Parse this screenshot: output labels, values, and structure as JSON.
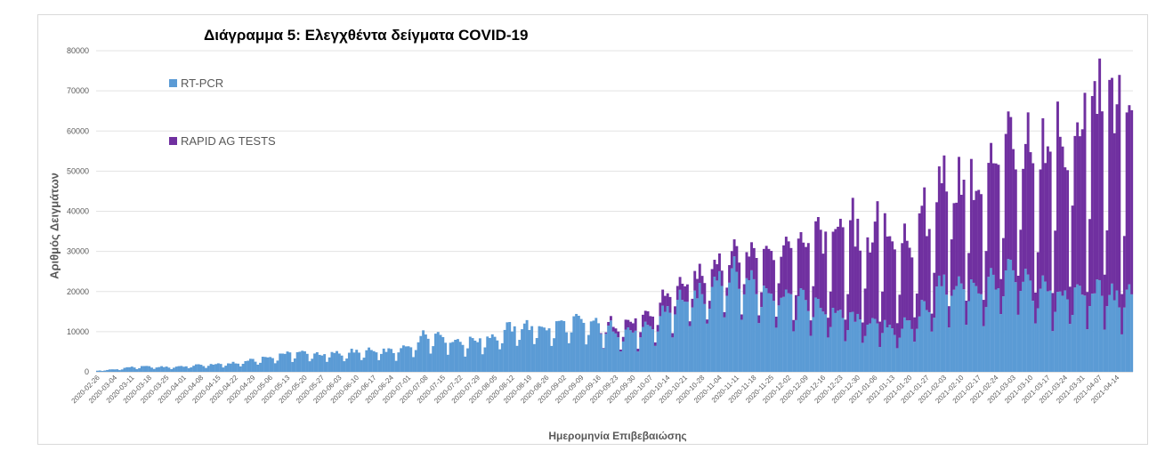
{
  "chart_data": {
    "type": "bar",
    "stacked": true,
    "title": "Διάγραμμα 5: Ελεγχθέντα δείγματα COVID-19",
    "xlabel": "Ημερομηνία Επιβεβαιώσης",
    "ylabel": "Αριθμός Δειγμάτων",
    "ylim": [
      0,
      80000
    ],
    "y_ticks": [
      0,
      10000,
      20000,
      30000,
      40000,
      50000,
      60000,
      70000,
      80000
    ],
    "grid": true,
    "legend_position": "top-left",
    "start_date": "2020-02-26",
    "end_date": "2021-04-20",
    "x_tick_labels": [
      "2020-02-26",
      "2020-03-04",
      "2020-03-11",
      "2020-03-18",
      "2020-03-25",
      "2020-04-01",
      "2020-04-08",
      "2020-04-15",
      "2020-04-22",
      "2020-04-29",
      "2020-05-06",
      "2020-05-13",
      "2020-05-20",
      "2020-05-27",
      "2020-06-03",
      "2020-06-10",
      "2020-06-17",
      "2020-06-24",
      "2020-07-01",
      "2020-07-08",
      "2020-07-15",
      "2020-07-22",
      "2020-07-29",
      "2020-08-05",
      "2020-08-12",
      "2020-08-19",
      "2020-08-26",
      "2020-09-02",
      "2020-09-09",
      "2020-09-16",
      "2020-09-23",
      "2020-09-30",
      "2020-10-07",
      "2020-10-14",
      "2020-10-21",
      "2020-10-28",
      "2020-11-04",
      "2020-11-11",
      "2020-11-18",
      "2020-11-25",
      "2020-12-02",
      "2020-12-09",
      "2020-12-16",
      "2020-12-23",
      "2020-12-30",
      "2021-01-06",
      "2021-01-13",
      "2021-01-20",
      "2021-01-27",
      "2021-02-03",
      "2021-02-10",
      "2021-02-17",
      "2021-02-24",
      "2021-03-03",
      "2021-03-10",
      "2021-03-17",
      "2021-03-24",
      "2021-03-31",
      "2021-04-07",
      "2021-04-14"
    ],
    "series": [
      {
        "name": "RT-PCR",
        "color": "#5b9bd5",
        "weekly_levels": [
          300,
          600,
          1200,
          1300,
          1200,
          1400,
          1700,
          1900,
          2200,
          2900,
          3600,
          4700,
          4800,
          4300,
          4600,
          5000,
          5100,
          5200,
          6000,
          9500,
          9000,
          7500,
          8000,
          9000,
          11000,
          11500,
          11000,
          12000,
          12500,
          11500,
          10500,
          10000,
          10500,
          16000,
          18500,
          19000,
          25000,
          24500,
          22500,
          20500,
          19000,
          17500,
          16000,
          14000,
          13000,
          12000,
          11000,
          11500,
          17000,
          22000,
          21500,
          21000,
          23000,
          24500,
          21500,
          20500,
          19500,
          19500,
          20500,
          18500
        ]
      },
      {
        "name": "RAPID AG TESTS",
        "color": "#7030a0",
        "weekly_levels": [
          0,
          0,
          0,
          0,
          0,
          0,
          0,
          0,
          0,
          0,
          0,
          0,
          0,
          0,
          0,
          0,
          0,
          0,
          0,
          0,
          0,
          0,
          0,
          0,
          0,
          0,
          0,
          0,
          0,
          0,
          1500,
          2500,
          3000,
          3500,
          4000,
          5000,
          4000,
          5500,
          7500,
          9500,
          12000,
          14500,
          18000,
          19000,
          20000,
          21000,
          23000,
          22000,
          21000,
          25000,
          26000,
          25000,
          28000,
          33000,
          34000,
          35000,
          38000,
          43000,
          48000,
          44000
        ]
      }
    ]
  }
}
